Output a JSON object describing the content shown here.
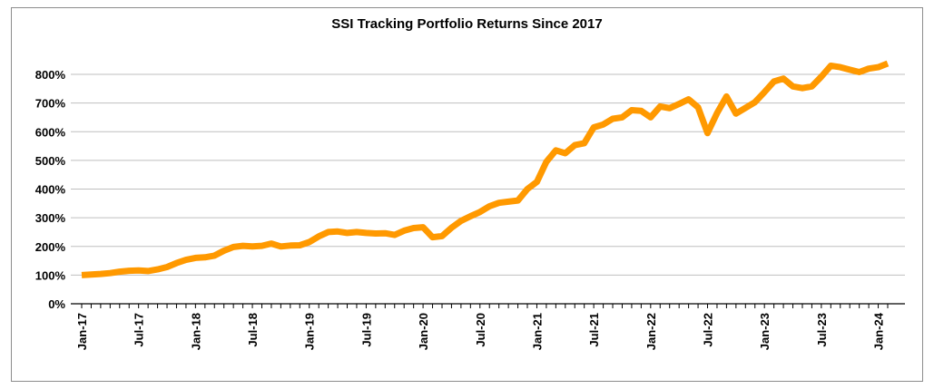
{
  "chart_data": {
    "type": "line",
    "title": "SSI Tracking Portfolio Returns Since 2017",
    "xlabel": "",
    "ylabel": "",
    "ylim": [
      0,
      800
    ],
    "yticks": [
      "0%",
      "100%",
      "200%",
      "300%",
      "400%",
      "500%",
      "600%",
      "700%",
      "800%"
    ],
    "xtick_labels": [
      "Jan-17",
      "Jul-17",
      "Jan-18",
      "Jul-18",
      "Jan-19",
      "Jul-19",
      "Jan-20",
      "Jul-20",
      "Jan-21",
      "Jul-21",
      "Jan-22",
      "Jul-22",
      "Jan-23",
      "Jul-23",
      "Jan-24"
    ],
    "grid": "horizontal",
    "legend": "none",
    "line_color": "#FF9900",
    "x_start": "Jan-17",
    "x_frequency": "monthly",
    "values": [
      100,
      102,
      104,
      107,
      112,
      115,
      116,
      114,
      120,
      128,
      142,
      153,
      160,
      162,
      168,
      185,
      198,
      202,
      200,
      202,
      210,
      200,
      203,
      204,
      215,
      235,
      250,
      252,
      247,
      250,
      247,
      245,
      246,
      240,
      255,
      264,
      267,
      232,
      236,
      265,
      289,
      305,
      320,
      340,
      352,
      356,
      360,
      400,
      425,
      495,
      535,
      525,
      553,
      560,
      615,
      625,
      645,
      650,
      675,
      673,
      650,
      688,
      682,
      697,
      713,
      685,
      595,
      665,
      723,
      663,
      683,
      703,
      738,
      775,
      785,
      758,
      752,
      758,
      792,
      830,
      825,
      816,
      808,
      820,
      825,
      838
    ]
  }
}
